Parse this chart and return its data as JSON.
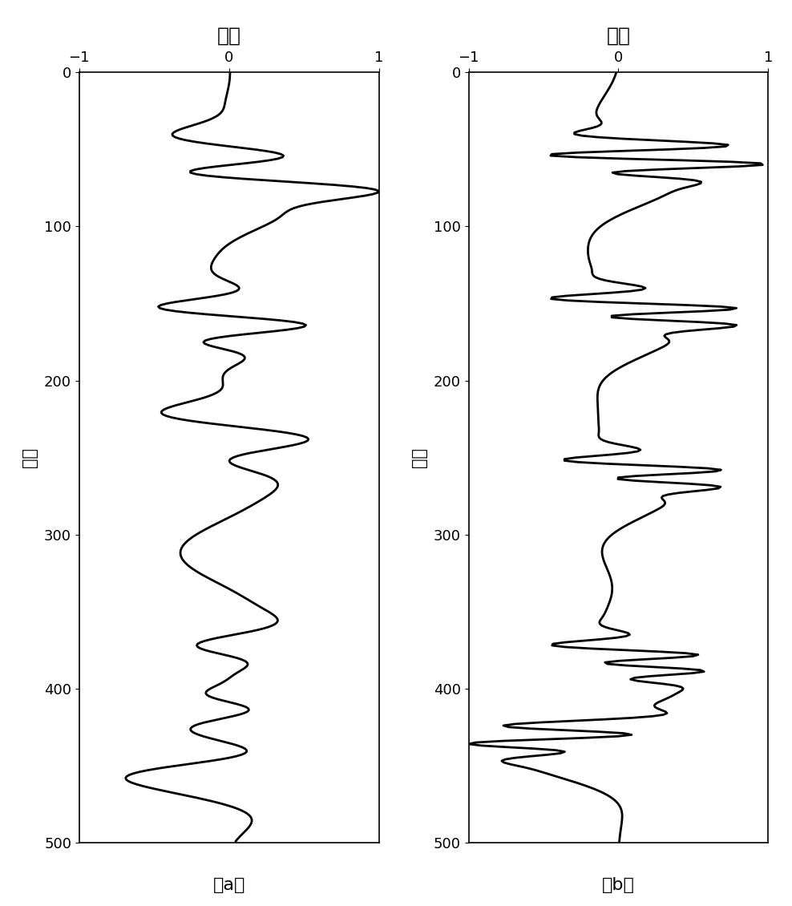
{
  "title_a": "振幅",
  "title_b": "振幅",
  "ylabel": "时间",
  "label_a": "（a）",
  "label_b": "（b）",
  "xlim": [
    -1,
    1
  ],
  "ylim": [
    0,
    500
  ],
  "xticks": [
    -1,
    0,
    1
  ],
  "yticks": [
    0,
    100,
    200,
    300,
    400,
    500
  ],
  "background_color": "#ffffff",
  "line_color": "#000000",
  "line_width": 2.0,
  "figsize": [
    9.88,
    11.3
  ],
  "dpi": 100,
  "n_samples": 500,
  "events_a": [
    {
      "t0": 55,
      "amp": 0.6,
      "f": 0.03,
      "sigma": 14
    },
    {
      "t0": 65,
      "amp": -0.55,
      "f": 0.03,
      "sigma": 10
    },
    {
      "t0": 75,
      "amp": 0.85,
      "f": 0.025,
      "sigma": 8
    },
    {
      "t0": 82,
      "amp": 0.8,
      "f": 0.01,
      "sigma": 30
    },
    {
      "t0": 155,
      "amp": -0.65,
      "f": 0.03,
      "sigma": 12
    },
    {
      "t0": 163,
      "amp": 0.7,
      "f": 0.03,
      "sigma": 10
    },
    {
      "t0": 172,
      "amp": -0.5,
      "f": 0.028,
      "sigma": 9
    },
    {
      "t0": 178,
      "amp": 0.55,
      "f": 0.01,
      "sigma": 28
    },
    {
      "t0": 225,
      "amp": -0.52,
      "f": 0.022,
      "sigma": 16
    },
    {
      "t0": 237,
      "amp": 0.6,
      "f": 0.022,
      "sigma": 14
    },
    {
      "t0": 248,
      "amp": -0.48,
      "f": 0.02,
      "sigma": 12
    },
    {
      "t0": 180,
      "amp": -0.3,
      "f": 0.008,
      "sigma": 60
    },
    {
      "t0": 260,
      "amp": 0.35,
      "f": 0.008,
      "sigma": 45
    },
    {
      "t0": 310,
      "amp": -0.28,
      "f": 0.012,
      "sigma": 30
    },
    {
      "t0": 355,
      "amp": 0.25,
      "f": 0.012,
      "sigma": 25
    },
    {
      "t0": 375,
      "amp": -0.5,
      "f": 0.025,
      "sigma": 14
    },
    {
      "t0": 383,
      "amp": 0.55,
      "f": 0.025,
      "sigma": 12
    },
    {
      "t0": 390,
      "amp": -0.45,
      "f": 0.025,
      "sigma": 10
    },
    {
      "t0": 397,
      "amp": 0.4,
      "f": 0.025,
      "sigma": 9
    },
    {
      "t0": 405,
      "amp": -0.55,
      "f": 0.022,
      "sigma": 11
    },
    {
      "t0": 413,
      "amp": 0.5,
      "f": 0.022,
      "sigma": 10
    },
    {
      "t0": 420,
      "amp": -0.45,
      "f": 0.022,
      "sigma": 9
    },
    {
      "t0": 435,
      "amp": -0.7,
      "f": 0.018,
      "sigma": 14
    },
    {
      "t0": 443,
      "amp": 0.75,
      "f": 0.018,
      "sigma": 12
    },
    {
      "t0": 451,
      "amp": -0.6,
      "f": 0.018,
      "sigma": 11
    },
    {
      "t0": 460,
      "amp": -0.88,
      "f": 0.015,
      "sigma": 18
    }
  ],
  "events_b": [
    {
      "t0": 48,
      "amp": 0.7,
      "f": 0.055,
      "sigma": 7
    },
    {
      "t0": 54,
      "amp": -0.8,
      "f": 0.055,
      "sigma": 6
    },
    {
      "t0": 59,
      "amp": 0.85,
      "f": 0.055,
      "sigma": 5
    },
    {
      "t0": 64,
      "amp": -0.7,
      "f": 0.055,
      "sigma": 5
    },
    {
      "t0": 68,
      "amp": 0.65,
      "f": 0.01,
      "sigma": 30
    },
    {
      "t0": 148,
      "amp": -0.68,
      "f": 0.055,
      "sigma": 7
    },
    {
      "t0": 153,
      "amp": 0.72,
      "f": 0.055,
      "sigma": 6
    },
    {
      "t0": 158,
      "amp": -0.65,
      "f": 0.055,
      "sigma": 5
    },
    {
      "t0": 163,
      "amp": 0.58,
      "f": 0.055,
      "sigma": 5
    },
    {
      "t0": 167,
      "amp": 0.6,
      "f": 0.01,
      "sigma": 28
    },
    {
      "t0": 253,
      "amp": -0.55,
      "f": 0.055,
      "sigma": 7
    },
    {
      "t0": 258,
      "amp": 0.62,
      "f": 0.055,
      "sigma": 6
    },
    {
      "t0": 263,
      "amp": -0.52,
      "f": 0.055,
      "sigma": 5
    },
    {
      "t0": 268,
      "amp": 0.48,
      "f": 0.055,
      "sigma": 5
    },
    {
      "t0": 272,
      "amp": 0.55,
      "f": 0.01,
      "sigma": 28
    },
    {
      "t0": 373,
      "amp": -0.52,
      "f": 0.055,
      "sigma": 7
    },
    {
      "t0": 378,
      "amp": 0.58,
      "f": 0.055,
      "sigma": 6
    },
    {
      "t0": 383,
      "amp": -0.5,
      "f": 0.055,
      "sigma": 5
    },
    {
      "t0": 388,
      "amp": 0.45,
      "f": 0.055,
      "sigma": 5
    },
    {
      "t0": 393,
      "amp": -0.4,
      "f": 0.055,
      "sigma": 4
    },
    {
      "t0": 398,
      "amp": 0.55,
      "f": 0.01,
      "sigma": 28
    },
    {
      "t0": 425,
      "amp": -0.72,
      "f": 0.055,
      "sigma": 7
    },
    {
      "t0": 430,
      "amp": 0.68,
      "f": 0.055,
      "sigma": 6
    },
    {
      "t0": 435,
      "amp": -0.62,
      "f": 0.055,
      "sigma": 5
    },
    {
      "t0": 440,
      "amp": 0.55,
      "f": 0.055,
      "sigma": 5
    },
    {
      "t0": 444,
      "amp": -0.9,
      "f": 0.008,
      "sigma": 18
    }
  ]
}
